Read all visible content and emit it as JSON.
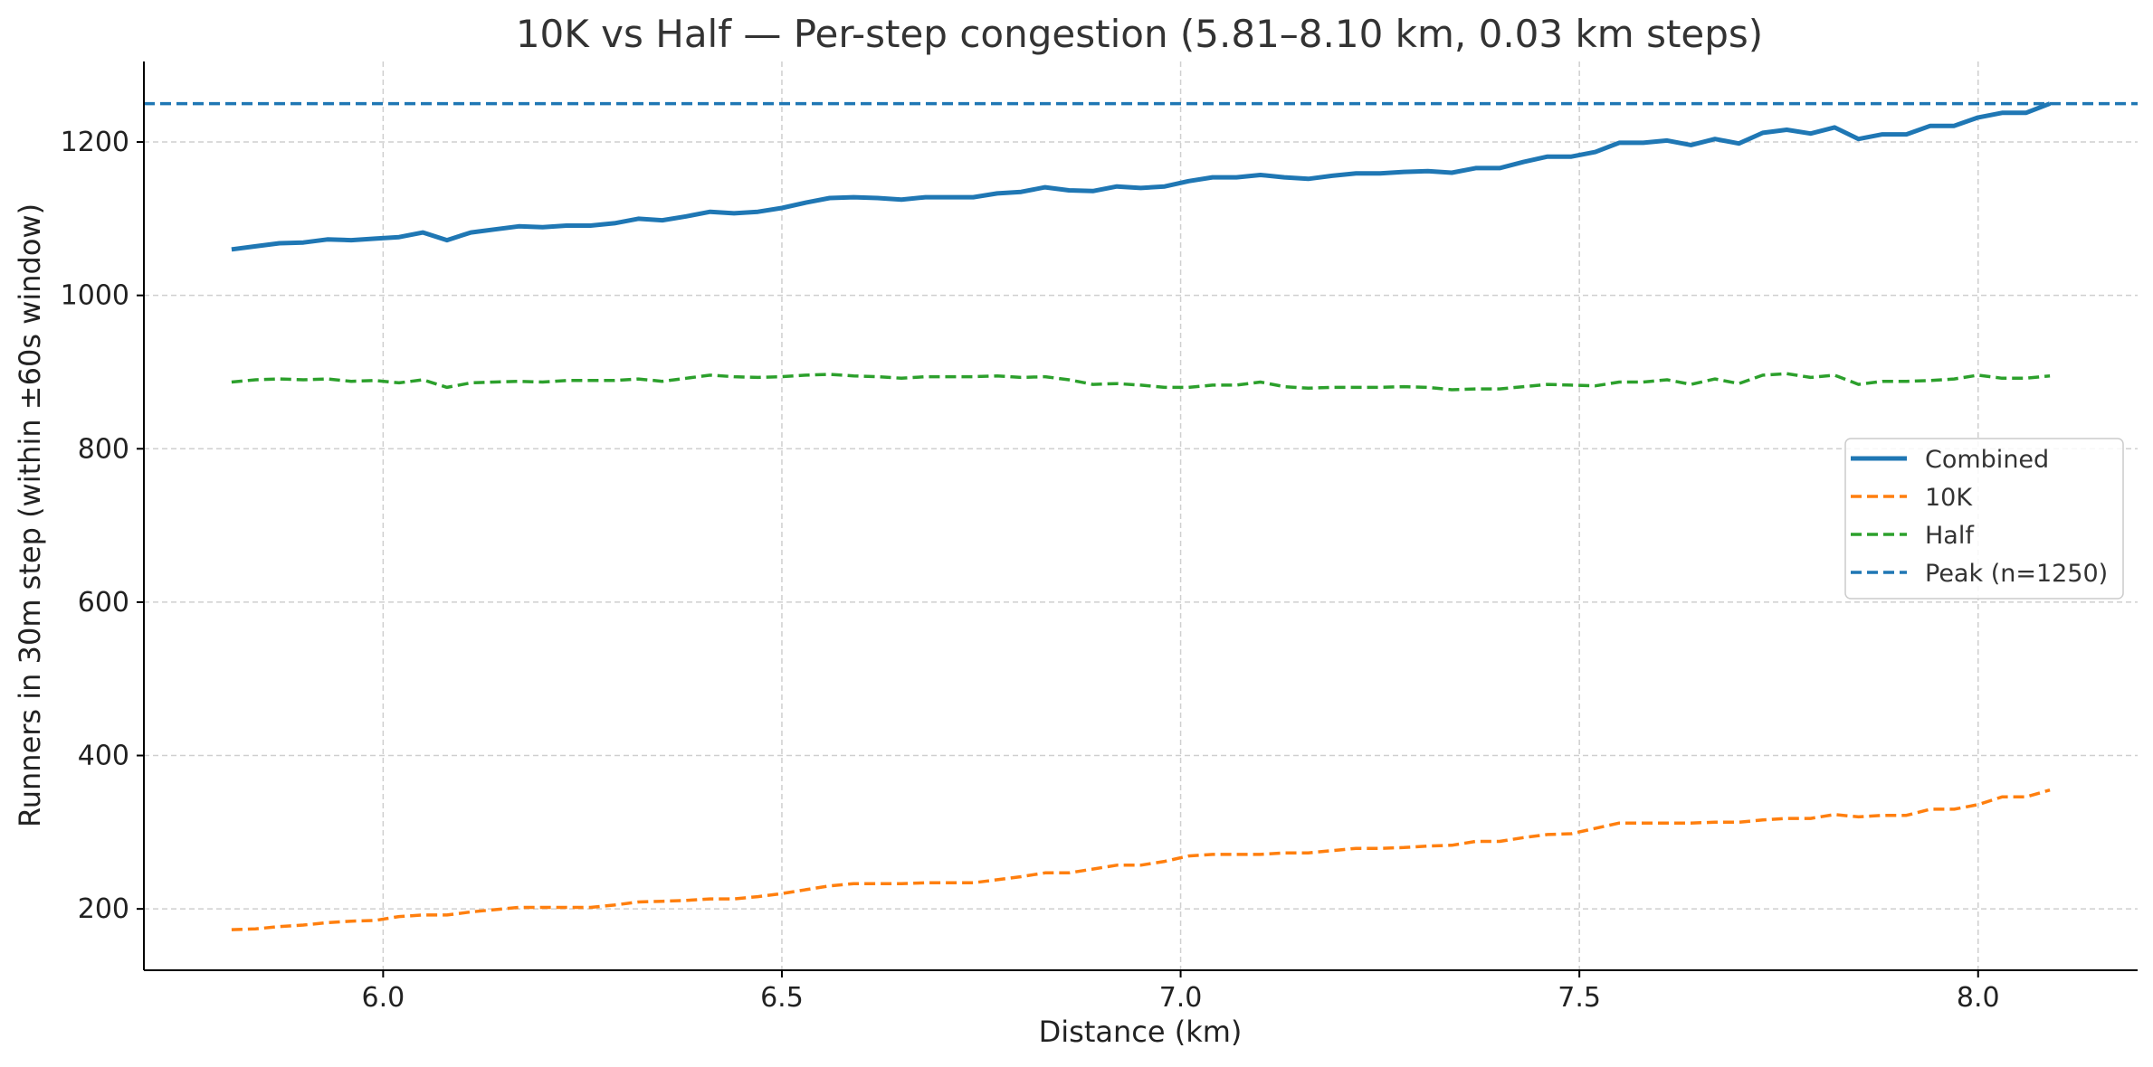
{
  "chart_data": {
    "type": "line",
    "title": "10K vs Half — Per-step congestion (5.81–8.10 km, 0.03 km steps)",
    "xlabel": "Distance (km)",
    "ylabel": "Runners in 30m step (within ±60s window)",
    "xlim": [
      5.7,
      8.2
    ],
    "ylim": [
      120,
      1305
    ],
    "xticks": [
      6.0,
      6.5,
      7.0,
      7.5,
      8.0
    ],
    "xtick_labels": [
      "6.0",
      "6.5",
      "7.0",
      "7.5",
      "8.0"
    ],
    "yticks": [
      200,
      400,
      600,
      800,
      1000,
      1200
    ],
    "ytick_labels": [
      "200",
      "400",
      "600",
      "800",
      "1000",
      "1200"
    ],
    "grid": true,
    "legend_position": "right",
    "x": [
      5.81,
      5.84,
      5.87,
      5.9,
      5.93,
      5.96,
      5.99,
      6.02,
      6.05,
      6.08,
      6.11,
      6.14,
      6.17,
      6.2,
      6.23,
      6.26,
      6.29,
      6.32,
      6.35,
      6.38,
      6.41,
      6.44,
      6.47,
      6.5,
      6.53,
      6.56,
      6.59,
      6.62,
      6.65,
      6.68,
      6.71,
      6.74,
      6.77,
      6.8,
      6.83,
      6.86,
      6.89,
      6.92,
      6.95,
      6.98,
      7.01,
      7.04,
      7.07,
      7.1,
      7.13,
      7.16,
      7.19,
      7.22,
      7.25,
      7.28,
      7.31,
      7.34,
      7.37,
      7.4,
      7.43,
      7.46,
      7.49,
      7.52,
      7.55,
      7.58,
      7.61,
      7.64,
      7.67,
      7.7,
      7.73,
      7.76,
      7.79,
      7.82,
      7.85,
      7.88,
      7.91,
      7.94,
      7.97,
      8.0,
      8.03,
      8.06,
      8.09
    ],
    "series": [
      {
        "name": "Combined",
        "color": "#1f77b4",
        "style": "solid",
        "values": [
          1060,
          1064,
          1068,
          1069,
          1073,
          1072,
          1074,
          1076,
          1082,
          1072,
          1082,
          1086,
          1090,
          1089,
          1091,
          1091,
          1094,
          1100,
          1098,
          1103,
          1109,
          1107,
          1109,
          1114,
          1121,
          1127,
          1128,
          1127,
          1125,
          1128,
          1128,
          1128,
          1133,
          1135,
          1141,
          1137,
          1136,
          1142,
          1140,
          1142,
          1149,
          1154,
          1154,
          1157,
          1154,
          1152,
          1156,
          1159,
          1159,
          1161,
          1162,
          1160,
          1166,
          1166,
          1174,
          1181,
          1181,
          1187,
          1199,
          1199,
          1202,
          1196,
          1204,
          1198,
          1212,
          1216,
          1211,
          1219,
          1204,
          1210,
          1210,
          1221,
          1221,
          1232,
          1238,
          1238,
          1250
        ]
      },
      {
        "name": "10K",
        "color": "#ff7f0e",
        "style": "dashed",
        "values": [
          173,
          174,
          177,
          179,
          182,
          184,
          185,
          190,
          192,
          192,
          196,
          199,
          202,
          202,
          202,
          202,
          205,
          209,
          210,
          211,
          213,
          213,
          216,
          220,
          225,
          230,
          233,
          233,
          233,
          234,
          234,
          234,
          238,
          242,
          247,
          247,
          252,
          257,
          257,
          262,
          269,
          271,
          271,
          271,
          273,
          273,
          276,
          279,
          279,
          280,
          282,
          283,
          288,
          288,
          293,
          297,
          298,
          305,
          312,
          312,
          312,
          312,
          313,
          313,
          316,
          318,
          318,
          323,
          320,
          322,
          322,
          330,
          330,
          336,
          346,
          346,
          355
        ]
      },
      {
        "name": "Half",
        "color": "#2ca02c",
        "style": "dashed",
        "values": [
          887,
          890,
          891,
          890,
          891,
          888,
          889,
          886,
          890,
          880,
          886,
          887,
          888,
          887,
          889,
          889,
          889,
          891,
          888,
          892,
          896,
          894,
          893,
          894,
          896,
          897,
          895,
          894,
          892,
          894,
          894,
          894,
          895,
          893,
          894,
          890,
          884,
          885,
          883,
          880,
          880,
          883,
          883,
          887,
          881,
          879,
          880,
          880,
          880,
          881,
          880,
          877,
          878,
          878,
          881,
          884,
          883,
          882,
          887,
          887,
          890,
          884,
          891,
          885,
          896,
          898,
          893,
          896,
          884,
          888,
          888,
          889,
          891,
          896,
          892,
          892,
          895
        ]
      },
      {
        "name": "Peak (n=1250)",
        "color": "#1f77b4",
        "style": "dashed-hline",
        "value": 1250
      }
    ]
  }
}
